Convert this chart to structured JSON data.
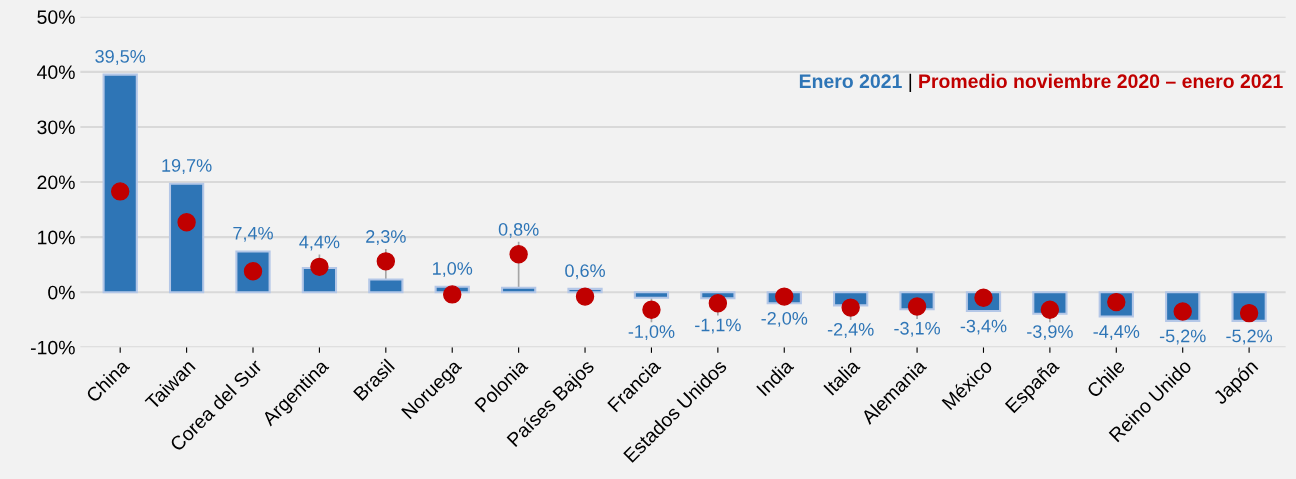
{
  "chart_data": {
    "type": "bar",
    "categories": [
      "China",
      "Taiwan",
      "Corea del Sur",
      "Argentina",
      "Brasil",
      "Noruega",
      "Polonia",
      "Países Bajos",
      "Francia",
      "Estados Unidos",
      "India",
      "Italia",
      "Alemania",
      "México",
      "España",
      "Chile",
      "Reino Unido",
      "Japón"
    ],
    "series": [
      {
        "name": "Enero 2021",
        "color": "#2e75b6",
        "values": [
          39.5,
          19.7,
          7.4,
          4.4,
          2.3,
          1.0,
          0.8,
          0.6,
          -1.0,
          -1.1,
          -2.0,
          -2.4,
          -3.1,
          -3.4,
          -3.9,
          -4.4,
          -5.2,
          -5.2
        ],
        "value_labels": [
          "39,5%",
          "19,7%",
          "7,4%",
          "4,4%",
          "2,3%",
          "1,0%",
          "0,8%",
          "0,6%",
          "-1,0%",
          "-1,1%",
          "-2,0%",
          "-2,4%",
          "-3,1%",
          "-3,4%",
          "-3,9%",
          "-4,4%",
          "-5,2%",
          "-5,2%"
        ]
      },
      {
        "name": "Promedio noviembre 2020 – enero 2021",
        "color": "#c00000",
        "type": "scatter",
        "marker": "circle",
        "values": [
          18.3,
          12.7,
          3.8,
          4.6,
          5.6,
          -0.4,
          6.9,
          -0.8,
          -3.2,
          -2.0,
          -0.8,
          -2.8,
          -2.6,
          -1.0,
          -3.2,
          -1.8,
          -3.5,
          -3.8
        ]
      }
    ],
    "ylim": [
      -10,
      50
    ],
    "yticks": [
      {
        "value": -10,
        "label": "-10%"
      },
      {
        "value": 0,
        "label": "0%"
      },
      {
        "value": 10,
        "label": "10%"
      },
      {
        "value": 20,
        "label": "20%"
      },
      {
        "value": 30,
        "label": "30%"
      },
      {
        "value": 40,
        "label": "40%"
      },
      {
        "value": 50,
        "label": "50%"
      }
    ],
    "grid": "y",
    "legend": "top right",
    "annotations": [
      "|"
    ]
  }
}
